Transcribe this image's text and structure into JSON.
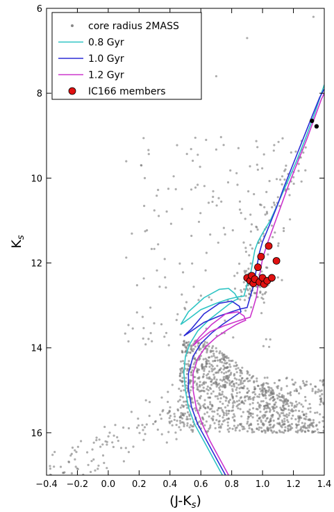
{
  "chart_data": {
    "type": "scatter",
    "title": "",
    "xlabel": "(J-K",
    "xlabel_sub": "s",
    "xlabel_end": ")",
    "ylabel": "K",
    "ylabel_sub": "s",
    "xlim": [
      -0.4,
      1.4
    ],
    "ylim": [
      17,
      6
    ],
    "y_inverted": true,
    "grid": false,
    "legend_position": "top-left",
    "xticks": [
      -0.4,
      -0.2,
      0.0,
      0.2,
      0.4,
      0.6,
      0.8,
      1.0,
      1.2,
      1.4
    ],
    "xtick_labels": [
      "−0.4",
      "−0.2",
      "0.0",
      "0.2",
      "0.4",
      "0.6",
      "0.8",
      "1.0",
      "1.2",
      "1.4"
    ],
    "yticks": [
      6,
      8,
      10,
      12,
      14,
      16
    ],
    "ytick_labels": [
      "6",
      "8",
      "10",
      "12",
      "14",
      "16"
    ],
    "legend": [
      {
        "label": "core radius 2MASS",
        "kind": "dot",
        "color": "#888888"
      },
      {
        "label": "0.8 Gyr",
        "kind": "line",
        "color": "#2ec4c4"
      },
      {
        "label": "1.0 Gyr",
        "kind": "line",
        "color": "#2b2bd6"
      },
      {
        "label": "1.2 Gyr",
        "kind": "line",
        "color": "#cc33cc"
      },
      {
        "label": "IC166 members",
        "kind": "circle",
        "color": "#e01010"
      }
    ],
    "field_stars": {
      "color": "#777777",
      "description": "approximate field distribution",
      "approximate_count": 1400
    },
    "isochrones": [
      {
        "name": "0.8 Gyr",
        "color": "#2ec4c4",
        "x": [
          0.74,
          0.68,
          0.62,
          0.56,
          0.52,
          0.5,
          0.49,
          0.5,
          0.53,
          0.58,
          0.65,
          0.72,
          0.78,
          0.82,
          0.84,
          0.82,
          0.78,
          0.72,
          0.62,
          0.52,
          0.47,
          0.52,
          0.6,
          0.7,
          0.78,
          0.84,
          0.88,
          0.9,
          0.92,
          0.93,
          0.94,
          0.95,
          0.97,
          1.0,
          1.05,
          1.1,
          1.16,
          1.22,
          1.28,
          1.34,
          1.4
        ],
        "y": [
          17.0,
          16.6,
          16.2,
          15.8,
          15.4,
          15.0,
          14.6,
          14.2,
          13.9,
          13.6,
          13.35,
          13.15,
          12.98,
          12.88,
          12.85,
          12.72,
          12.6,
          12.62,
          12.82,
          13.15,
          13.45,
          13.32,
          13.1,
          12.95,
          12.85,
          12.8,
          12.78,
          12.5,
          12.3,
          12.1,
          11.9,
          11.7,
          11.5,
          11.3,
          11.0,
          10.6,
          10.1,
          9.6,
          9.05,
          8.45,
          7.8
        ]
      },
      {
        "name": "1.0 Gyr",
        "color": "#2b2bd6",
        "x": [
          0.76,
          0.7,
          0.64,
          0.58,
          0.54,
          0.52,
          0.52,
          0.55,
          0.6,
          0.67,
          0.74,
          0.8,
          0.84,
          0.86,
          0.85,
          0.8,
          0.72,
          0.62,
          0.54,
          0.49,
          0.54,
          0.62,
          0.72,
          0.8,
          0.86,
          0.9,
          0.92,
          0.94,
          0.95,
          0.96,
          0.97,
          0.98,
          1.0,
          1.04,
          1.09,
          1.14,
          1.2,
          1.26,
          1.32,
          1.37,
          1.4
        ],
        "y": [
          17.0,
          16.6,
          16.2,
          15.8,
          15.4,
          15.0,
          14.6,
          14.2,
          13.9,
          13.65,
          13.45,
          13.3,
          13.2,
          13.15,
          13.02,
          12.9,
          12.95,
          13.2,
          13.55,
          13.72,
          13.6,
          13.4,
          13.25,
          13.15,
          13.08,
          13.05,
          12.8,
          12.55,
          12.35,
          12.15,
          11.95,
          11.75,
          11.5,
          11.15,
          10.7,
          10.2,
          9.65,
          9.1,
          8.55,
          8.1,
          7.9
        ]
      },
      {
        "name": "1.2 Gyr",
        "color": "#cc33cc",
        "x": [
          0.78,
          0.72,
          0.66,
          0.61,
          0.57,
          0.55,
          0.55,
          0.58,
          0.63,
          0.7,
          0.77,
          0.83,
          0.87,
          0.89,
          0.88,
          0.84,
          0.76,
          0.67,
          0.59,
          0.55,
          0.58,
          0.66,
          0.75,
          0.83,
          0.88,
          0.92,
          0.94,
          0.96,
          0.97,
          0.98,
          0.99,
          1.0,
          1.03,
          1.07,
          1.12,
          1.17,
          1.23,
          1.29,
          1.34,
          1.38,
          1.4
        ],
        "y": [
          17.0,
          16.6,
          16.2,
          15.8,
          15.4,
          15.0,
          14.6,
          14.25,
          13.98,
          13.75,
          13.58,
          13.45,
          13.38,
          13.35,
          13.25,
          13.15,
          13.2,
          13.45,
          13.75,
          13.95,
          13.85,
          13.62,
          13.48,
          13.38,
          13.32,
          13.28,
          13.05,
          12.8,
          12.55,
          12.3,
          12.1,
          11.9,
          11.55,
          11.15,
          10.65,
          10.15,
          9.6,
          9.05,
          8.55,
          8.15,
          8.0
        ]
      }
    ],
    "members": {
      "color": "#e01010",
      "points": [
        {
          "x": 0.9,
          "y": 12.35
        },
        {
          "x": 0.92,
          "y": 12.42
        },
        {
          "x": 0.93,
          "y": 12.3
        },
        {
          "x": 0.94,
          "y": 12.48
        },
        {
          "x": 0.95,
          "y": 12.38
        },
        {
          "x": 0.97,
          "y": 12.1
        },
        {
          "x": 0.98,
          "y": 12.45
        },
        {
          "x": 0.99,
          "y": 11.85
        },
        {
          "x": 1.0,
          "y": 12.35
        },
        {
          "x": 1.01,
          "y": 12.5
        },
        {
          "x": 1.03,
          "y": 12.42
        },
        {
          "x": 1.04,
          "y": 11.6
        },
        {
          "x": 1.06,
          "y": 12.35
        },
        {
          "x": 1.09,
          "y": 11.95
        }
      ]
    },
    "bright_stars": {
      "color": "#000000",
      "points": [
        {
          "x": 1.32,
          "y": 8.65
        },
        {
          "x": 1.35,
          "y": 8.78
        }
      ]
    }
  }
}
